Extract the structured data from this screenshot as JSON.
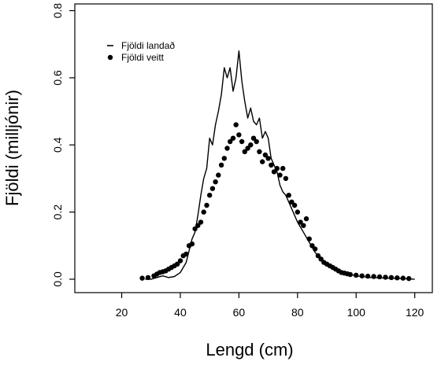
{
  "chart_data": {
    "type": "line",
    "title": "",
    "xlabel": "Lengd (cm)",
    "ylabel": "Fjöldi (milljónir)",
    "xlim": [
      4,
      126
    ],
    "ylim": [
      -0.04,
      0.82
    ],
    "x_ticks": [
      20,
      40,
      60,
      80,
      100,
      120
    ],
    "x_tick_labels": [
      "20",
      "40",
      "60",
      "80",
      "100",
      "120"
    ],
    "y_ticks": [
      0.0,
      0.2,
      0.4,
      0.6,
      0.8
    ],
    "y_tick_labels": [
      "0.0",
      "0.2",
      "0.4",
      "0.6",
      "0.8"
    ],
    "grid": false,
    "legend": {
      "placement": "top-left",
      "entries": [
        {
          "label": "Fjöldi landað",
          "marker": "dash"
        },
        {
          "label": "Fjöldi veitt",
          "marker": "dot"
        }
      ]
    },
    "series": [
      {
        "name": "Fjöldi landað",
        "style": "line",
        "color": "#000000",
        "x": [
          28,
          30,
          32,
          34,
          36,
          38,
          40,
          42,
          44,
          45,
          46,
          47,
          48,
          49,
          50,
          51,
          52,
          53,
          54,
          55,
          56,
          57,
          58,
          59,
          60,
          61,
          62,
          63,
          64,
          65,
          66,
          67,
          68,
          69,
          70,
          71,
          72,
          73,
          74,
          75,
          76,
          77,
          78,
          79,
          80,
          82,
          84,
          86,
          88,
          90,
          92,
          95,
          100,
          105,
          110,
          115,
          120
        ],
        "y": [
          0.0,
          0.0,
          0.005,
          0.01,
          0.005,
          0.008,
          0.02,
          0.05,
          0.12,
          0.14,
          0.19,
          0.25,
          0.3,
          0.33,
          0.42,
          0.4,
          0.46,
          0.5,
          0.55,
          0.63,
          0.6,
          0.63,
          0.56,
          0.6,
          0.68,
          0.59,
          0.53,
          0.48,
          0.51,
          0.47,
          0.46,
          0.48,
          0.42,
          0.44,
          0.42,
          0.36,
          0.34,
          0.32,
          0.28,
          0.26,
          0.25,
          0.23,
          0.21,
          0.19,
          0.17,
          0.14,
          0.11,
          0.08,
          0.06,
          0.04,
          0.03,
          0.02,
          0.01,
          0.005,
          0.003,
          0.002,
          0.0
        ]
      },
      {
        "name": "Fjöldi veitt",
        "style": "points",
        "color": "#000000",
        "x": [
          27,
          29,
          31,
          32,
          33,
          34,
          35,
          36,
          37,
          38,
          39,
          40,
          41,
          42,
          43,
          44,
          45,
          46,
          47,
          48,
          49,
          50,
          51,
          52,
          53,
          54,
          55,
          56,
          57,
          58,
          59,
          60,
          61,
          62,
          63,
          64,
          65,
          66,
          67,
          68,
          69,
          70,
          71,
          72,
          73,
          74,
          75,
          76,
          77,
          78,
          79,
          80,
          81,
          82,
          83,
          84,
          85,
          86,
          87,
          88,
          89,
          90,
          91,
          92,
          93,
          94,
          95,
          96,
          97,
          98,
          100,
          102,
          104,
          106,
          108,
          110,
          112,
          114,
          116,
          118
        ],
        "y": [
          0.003,
          0.005,
          0.01,
          0.015,
          0.02,
          0.022,
          0.025,
          0.03,
          0.035,
          0.04,
          0.045,
          0.055,
          0.07,
          0.075,
          0.1,
          0.105,
          0.15,
          0.16,
          0.17,
          0.2,
          0.22,
          0.25,
          0.27,
          0.29,
          0.31,
          0.34,
          0.36,
          0.39,
          0.41,
          0.42,
          0.46,
          0.43,
          0.41,
          0.38,
          0.39,
          0.4,
          0.42,
          0.41,
          0.38,
          0.35,
          0.37,
          0.36,
          0.34,
          0.32,
          0.33,
          0.31,
          0.33,
          0.3,
          0.25,
          0.23,
          0.22,
          0.2,
          0.17,
          0.16,
          0.18,
          0.12,
          0.1,
          0.09,
          0.07,
          0.06,
          0.05,
          0.045,
          0.04,
          0.035,
          0.03,
          0.025,
          0.02,
          0.018,
          0.016,
          0.014,
          0.012,
          0.01,
          0.009,
          0.008,
          0.007,
          0.006,
          0.005,
          0.004,
          0.003,
          0.002
        ]
      }
    ]
  }
}
